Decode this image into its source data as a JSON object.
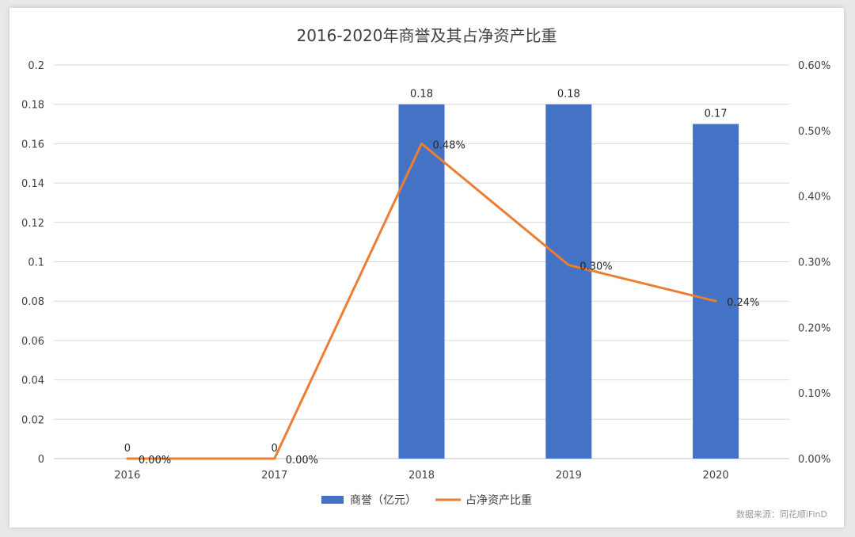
{
  "chart_data": {
    "type": "bar+line",
    "title": "2016-2020年商誉及其占净资产比重",
    "categories": [
      "2016",
      "2017",
      "2018",
      "2019",
      "2020"
    ],
    "series": [
      {
        "name": "商誉（亿元）",
        "type": "bar",
        "axis": "left",
        "values": [
          0,
          0,
          0.18,
          0.18,
          0.17
        ],
        "labels": [
          "0",
          "0",
          "0.18",
          "0.18",
          "0.17"
        ],
        "color": "#4472c4"
      },
      {
        "name": "占净资产比重",
        "type": "line",
        "axis": "right",
        "values": [
          0.0,
          0.0,
          0.48,
          0.3,
          0.24
        ],
        "display_values": [
          0.0,
          0.0,
          0.48,
          0.295,
          0.24
        ],
        "labels": [
          "0.00%",
          "0.00%",
          "0.48%",
          "0.30%",
          "0.24%"
        ],
        "color": "#ed7d31"
      }
    ],
    "y_left": {
      "ylim": [
        0,
        0.2
      ],
      "ticks": [
        "0",
        "0.02",
        "0.04",
        "0.06",
        "0.08",
        "0.1",
        "0.12",
        "0.14",
        "0.16",
        "0.18",
        "0.2"
      ]
    },
    "y_right": {
      "ylim": [
        0,
        0.6
      ],
      "ticks": [
        "0.00%",
        "0.10%",
        "0.20%",
        "0.30%",
        "0.40%",
        "0.50%",
        "0.60%"
      ]
    },
    "grid": true,
    "legend_position": "bottom-center"
  },
  "source_note": "数据来源：同花顺iFinD"
}
